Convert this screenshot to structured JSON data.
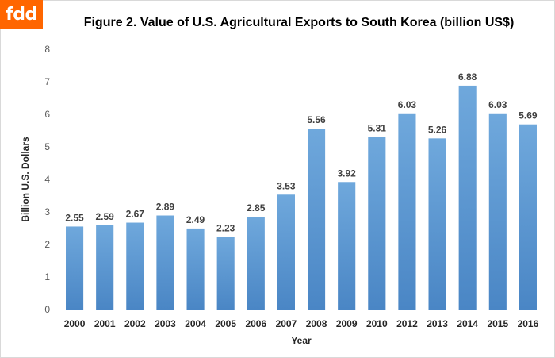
{
  "logo": {
    "text": "fdd",
    "color": "#ff6600"
  },
  "chart_data": {
    "type": "bar",
    "title": "Figure 2. Value of U.S. Agricultural  Exports to South Korea (billion US$)",
    "xlabel": "Year",
    "ylabel": "Billion U.S. Dollars",
    "ylim": [
      0,
      8
    ],
    "yticks": [
      0,
      1,
      2,
      3,
      4,
      5,
      6,
      7,
      8
    ],
    "grid": false,
    "legend": "none",
    "bar_color": "#5b9bd5",
    "categories": [
      "2000",
      "2001",
      "2002",
      "2003",
      "2004",
      "2005",
      "2006",
      "2007",
      "2008",
      "2009",
      "2010",
      "2012",
      "2013",
      "2014",
      "2015",
      "2016"
    ],
    "values": [
      2.55,
      2.59,
      2.67,
      2.89,
      2.49,
      2.23,
      2.85,
      3.53,
      5.56,
      3.92,
      5.31,
      6.03,
      5.26,
      6.88,
      6.03,
      5.69
    ],
    "value_labels": [
      "2.55",
      "2.59",
      "2.67",
      "2.89",
      "2.49",
      "2.23",
      "2.85",
      "3.53",
      "5.56",
      "3.92",
      "5.31",
      "6.03",
      "5.26",
      "6.88",
      "6.03",
      "5.69"
    ]
  }
}
